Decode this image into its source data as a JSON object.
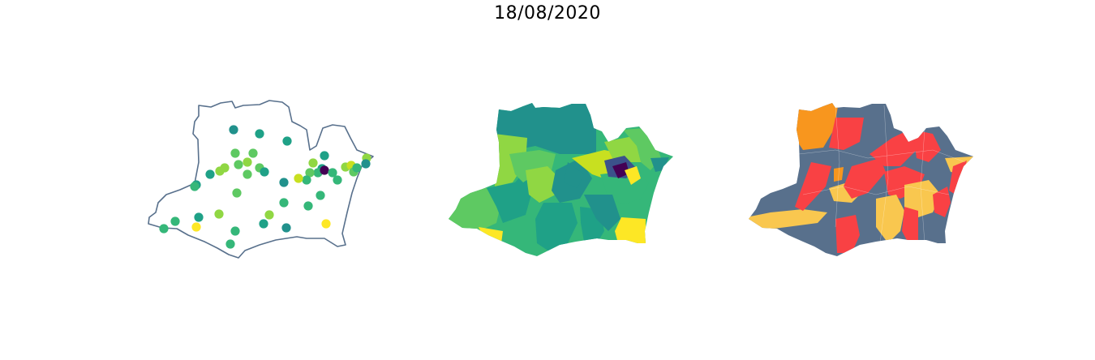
{
  "figure": {
    "title": "18/08/2020"
  },
  "colors": {
    "outline": "#58708c",
    "viridis": [
      "#440154",
      "#3b528b",
      "#21918c",
      "#1fa187",
      "#35b779",
      "#5ec962",
      "#90d743",
      "#c8e020",
      "#fde725"
    ],
    "categories": [
      "#58708c",
      "#f94144",
      "#f9c74f",
      "#f8961e"
    ]
  },
  "panels": [
    {
      "id": "points",
      "kind": "proportional-points"
    },
    {
      "id": "choropleth",
      "kind": "choropleth"
    },
    {
      "id": "categorical",
      "kind": "categorical"
    }
  ]
}
